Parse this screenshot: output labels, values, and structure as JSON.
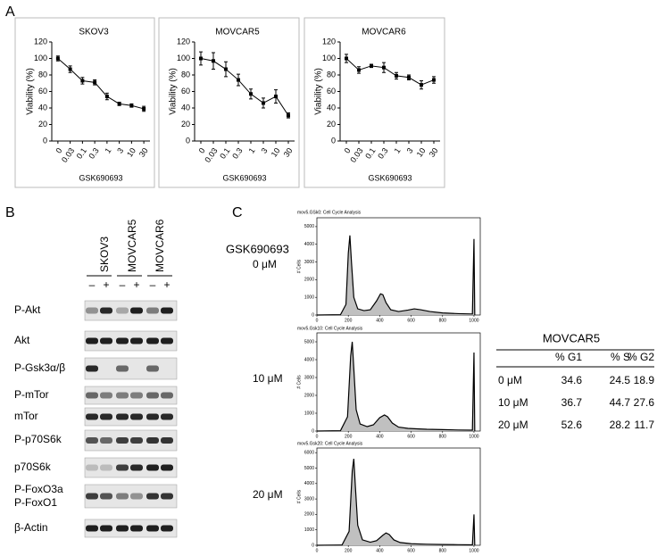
{
  "panel_labels": [
    "A",
    "B",
    "C"
  ],
  "chart_data": [
    {
      "type": "line",
      "title": "SKOV3",
      "y_label": "Viability (%)",
      "x_label": "GSK690693",
      "categories": [
        "0",
        "0.03",
        "0.1",
        "0.3",
        "1",
        "3",
        "10",
        "30"
      ],
      "series": [
        {
          "color": "#000000",
          "values": [
            100,
            87,
            73,
            71,
            54,
            45,
            43,
            39
          ],
          "errors": [
            3,
            4,
            4,
            3,
            4,
            2,
            2,
            3
          ]
        }
      ],
      "ylim": [
        0,
        120
      ],
      "yticks": [
        0,
        20,
        40,
        60,
        80,
        100,
        120
      ]
    },
    {
      "type": "line",
      "title": "MOVCAR5",
      "y_label": "Viability (%)",
      "x_label": "GSK690693",
      "categories": [
        "0",
        "0.03",
        "0.1",
        "0.3",
        "1",
        "3",
        "10",
        "30"
      ],
      "series": [
        {
          "color": "#000000",
          "values": [
            100,
            97,
            87,
            74,
            57,
            46,
            54,
            31
          ],
          "errors": [
            8,
            10,
            9,
            7,
            6,
            6,
            8,
            3
          ]
        }
      ],
      "ylim": [
        0,
        120
      ],
      "yticks": [
        0,
        20,
        40,
        60,
        80,
        100,
        120
      ]
    },
    {
      "type": "line",
      "title": "MOVCAR6",
      "y_label": "Viability (%)",
      "x_label": "GSK690693",
      "categories": [
        "0",
        "0.03",
        "0.1",
        "0.3",
        "1",
        "3",
        "10",
        "30"
      ],
      "series": [
        {
          "color": "#000000",
          "values": [
            100,
            86,
            91,
            89,
            79,
            77,
            68,
            74
          ],
          "errors": [
            5,
            4,
            2,
            6,
            4,
            3,
            5,
            4
          ]
        }
      ],
      "ylim": [
        0,
        120
      ],
      "yticks": [
        0,
        20,
        40,
        60,
        80,
        100,
        120
      ]
    },
    {
      "type": "area",
      "title": "mov5.GSk0: Cell Cycle Analysis",
      "y_label": "# Cells",
      "color": "#c0c0c0",
      "x": [
        0,
        150,
        185,
        200,
        210,
        220,
        235,
        260,
        300,
        340,
        380,
        405,
        420,
        440,
        470,
        520,
        580,
        620,
        660,
        720,
        800,
        900,
        990,
        1000,
        1005
      ],
      "values": [
        0,
        20,
        600,
        3500,
        4500,
        3000,
        1000,
        350,
        250,
        300,
        800,
        1200,
        1150,
        700,
        300,
        200,
        280,
        350,
        300,
        200,
        120,
        80,
        60,
        4300,
        0
      ],
      "xlim": [
        0,
        1040
      ],
      "xticks": [
        0,
        200,
        400,
        600,
        800,
        1000
      ],
      "ylim": [
        0,
        5500
      ],
      "yticks": [
        0,
        1000,
        2000,
        3000,
        4000,
        5000
      ]
    },
    {
      "type": "area",
      "title": "mov5.Gsk10: Cell Cycle Analysis",
      "y_label": "# Cells",
      "color": "#c0c0c0",
      "x": [
        0,
        150,
        195,
        215,
        225,
        235,
        250,
        275,
        320,
        360,
        400,
        430,
        450,
        480,
        520,
        580,
        650,
        700,
        800,
        900,
        990,
        1000,
        1005
      ],
      "values": [
        0,
        20,
        800,
        4200,
        5000,
        3500,
        1200,
        400,
        250,
        350,
        750,
        900,
        800,
        450,
        220,
        150,
        120,
        100,
        80,
        60,
        50,
        4400,
        0
      ],
      "xlim": [
        0,
        1040
      ],
      "xticks": [
        0,
        200,
        400,
        600,
        800,
        1000
      ],
      "ylim": [
        0,
        5500
      ],
      "yticks": [
        0,
        1000,
        2000,
        3000,
        4000,
        5000
      ]
    },
    {
      "type": "area",
      "title": "mov5.Gsk20: Cell Cycle Analysis",
      "y_label": "# Cells",
      "color": "#c0c0c0",
      "x": [
        0,
        160,
        205,
        225,
        235,
        245,
        260,
        290,
        340,
        380,
        420,
        440,
        460,
        490,
        530,
        600,
        700,
        800,
        900,
        990,
        1000,
        1005
      ],
      "values": [
        0,
        20,
        900,
        4800,
        5600,
        3800,
        1300,
        350,
        200,
        300,
        650,
        800,
        700,
        350,
        180,
        100,
        70,
        50,
        40,
        30,
        2000,
        0
      ],
      "xlim": [
        0,
        1040
      ],
      "xticks": [
        0,
        200,
        400,
        600,
        800,
        1000
      ],
      "ylim": [
        0,
        6300
      ],
      "yticks": [
        0,
        1000,
        2000,
        3000,
        4000,
        5000,
        6000
      ]
    }
  ],
  "blot": {
    "cell_lines": [
      "SKOV3",
      "MOVCAR5",
      "MOVCAR6"
    ],
    "treatment": [
      "–",
      "+",
      "–",
      "+",
      "–",
      "+"
    ],
    "rows": [
      "P-Akt",
      "Akt",
      "P-Gsk3α/β",
      "P-mTor",
      "mTor",
      "P-p70S6k",
      "p70S6k",
      "P-FoxO3a",
      "P-FoxO1",
      "β-Actin"
    ]
  },
  "cell_cycle": {
    "drug": "GSK690693",
    "doses": [
      "0 μM",
      "10 μM",
      "20 μM"
    ]
  },
  "table": {
    "title": "MOVCAR5",
    "header": [
      "% G1",
      "% S",
      "% G2"
    ],
    "rows": [
      [
        "0 μM",
        34.6,
        24.5,
        18.9
      ],
      [
        "10 μM",
        36.7,
        44.7,
        27.6
      ],
      [
        "20 μM",
        52.6,
        28.2,
        11.7
      ]
    ]
  }
}
